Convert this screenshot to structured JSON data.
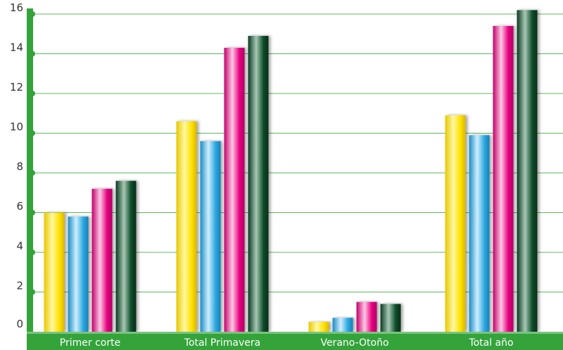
{
  "chart_data": {
    "type": "bar",
    "categories": [
      "Primer corte",
      "Total Primavera",
      "Verano-Otoño",
      "Total año"
    ],
    "series": [
      {
        "values": [
          6.0,
          10.6,
          0.5,
          10.9
        ]
      },
      {
        "values": [
          5.8,
          9.6,
          0.7,
          9.9
        ]
      },
      {
        "values": [
          7.2,
          14.3,
          1.5,
          15.4
        ]
      },
      {
        "values": [
          7.6,
          14.9,
          1.4,
          16.2
        ]
      }
    ],
    "ylim": [
      0,
      16
    ],
    "yticks": [
      0,
      2,
      4,
      6,
      8,
      10,
      12,
      14,
      16
    ],
    "grid": true,
    "legend": "none"
  },
  "colors": {
    "axis": "#33a33a",
    "grid": "#5cb85c",
    "series": [
      "#ffe100",
      "#2ea8e0",
      "#e6007e",
      "#0b4d2b"
    ]
  }
}
